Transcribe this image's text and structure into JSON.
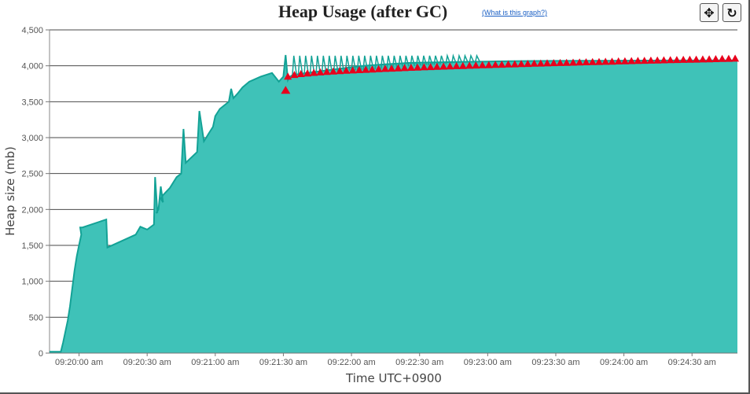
{
  "header": {
    "title": "Heap Usage (after GC)",
    "help_link": "(What is this graph?)",
    "move_icon": "✥",
    "reset_icon": "↻"
  },
  "colors": {
    "fill": "#3fc2b8",
    "line": "#13a296",
    "marker": "#e8001c",
    "grid": "#4a4a4a"
  },
  "chart_data": {
    "type": "area",
    "title": "Heap Usage (after GC)",
    "xlabel": "Time UTC+0900",
    "ylabel": "Heap size (mb)",
    "ylim": [
      0,
      4500
    ],
    "xlim_seconds": [
      -13,
      290
    ],
    "grid": true,
    "y_ticks": [
      0,
      500,
      1000,
      1500,
      2000,
      2500,
      3000,
      3500,
      4000,
      4500
    ],
    "y_tick_labels": [
      "0",
      "500",
      "1,000",
      "1,500",
      "2,000",
      "2,500",
      "3,000",
      "3,500",
      "4,000",
      "4,500"
    ],
    "x_ticks_seconds": [
      0,
      30,
      60,
      90,
      120,
      150,
      180,
      210,
      240,
      270
    ],
    "x_tick_labels": [
      "09:20:00 am",
      "09:20:30 am",
      "09:21:00 am",
      "09:21:30 am",
      "09:22:00 am",
      "09:22:30 am",
      "09:23:00 am",
      "09:23:30 am",
      "09:24:00 am",
      "09:24:30 am"
    ],
    "series": [
      {
        "x_seconds": [
          -13,
          -8,
          -7,
          -6,
          -5,
          -4,
          -3,
          -2,
          -1,
          0,
          1,
          0.5,
          1.5,
          12,
          12.5,
          25,
          27,
          30,
          33,
          33.5,
          34.5,
          34,
          35,
          36,
          37,
          36,
          37,
          40,
          42,
          43,
          45,
          46,
          47,
          52,
          53,
          55,
          56,
          57,
          59,
          60,
          62,
          64,
          66,
          67,
          68,
          70,
          72,
          75,
          80,
          85,
          88,
          90,
          91,
          92,
          92.5,
          93,
          93.5,
          94,
          96,
          98,
          100,
          105,
          110,
          115,
          120,
          125,
          130,
          135,
          140,
          145,
          150,
          160,
          170,
          180,
          190,
          200,
          220,
          240,
          260,
          290
        ],
        "y": [
          20,
          20,
          150,
          300,
          450,
          650,
          900,
          1150,
          1350,
          1500,
          1650,
          1750,
          1750,
          1860,
          1470,
          1650,
          1760,
          1720,
          1790,
          2450,
          1960,
          1950,
          2000,
          2320,
          2100,
          2150,
          2200,
          2300,
          2400,
          2450,
          2500,
          3120,
          2650,
          2800,
          3370,
          2950,
          3000,
          3050,
          3150,
          3300,
          3400,
          3450,
          3500,
          3680,
          3550,
          3620,
          3700,
          3780,
          3850,
          3900,
          3780,
          3850,
          4150,
          3800,
          3830,
          3850,
          3860,
          3870,
          3880,
          3890,
          3900,
          3920,
          3940,
          3960,
          3980,
          4000,
          4010,
          4020,
          4030,
          4040,
          4045,
          4050,
          4055,
          4060,
          4065,
          4068,
          4070,
          4072,
          4074,
          4075
        ]
      }
    ],
    "gc_markers": {
      "shape": "triangle",
      "color": "#e8001c",
      "x_start_seconds": 92,
      "x_end_seconds": 289,
      "y_start": 3840,
      "y_end": 4090
    }
  }
}
